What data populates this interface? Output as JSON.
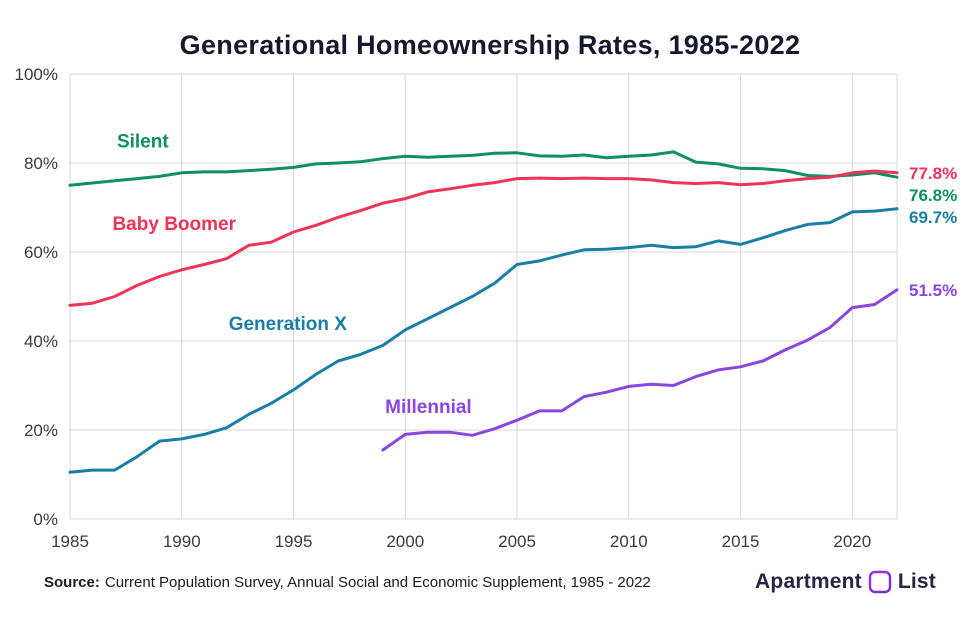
{
  "chart_data": {
    "type": "line",
    "title": "Generational Homeownership Rates, 1985-2022",
    "x_range": [
      1985,
      2022
    ],
    "ylim": [
      0,
      100
    ],
    "x_ticks": [
      1985,
      1990,
      1995,
      2000,
      2005,
      2010,
      2015,
      2020
    ],
    "y_ticks": [
      0,
      20,
      40,
      60,
      80,
      100
    ],
    "grid": true,
    "grid_color": "#d8d8d8",
    "axis_label_color": "#3b3b3b",
    "series": [
      {
        "name": "Silent",
        "color": "#0e9060",
        "start_year": 1985,
        "end_label": "76.8%",
        "values": [
          75,
          75.5,
          76,
          76.5,
          77,
          77.8,
          78,
          78,
          78.3,
          78.6,
          79,
          79.8,
          80,
          80.3,
          81,
          81.5,
          81.3,
          81.5,
          81.7,
          82.2,
          82.3,
          81.6,
          81.5,
          81.8,
          81.2,
          81.5,
          81.8,
          82.5,
          80.2,
          79.8,
          78.8,
          78.7,
          78.3,
          77.2,
          77,
          77.3,
          77.8,
          76.8
        ]
      },
      {
        "name": "Baby Boomer",
        "color": "#f03358",
        "start_year": 1985,
        "end_label": "77.8%",
        "values": [
          48,
          48.5,
          50,
          52.5,
          54.5,
          56,
          57.2,
          58.5,
          61.5,
          62.2,
          64.5,
          66,
          67.8,
          69.3,
          71,
          72,
          73.5,
          74.2,
          75,
          75.6,
          76.5,
          76.6,
          76.5,
          76.6,
          76.5,
          76.5,
          76.2,
          75.6,
          75.4,
          75.6,
          75.1,
          75.4,
          76,
          76.5,
          76.8,
          77.8,
          78.2,
          77.8
        ]
      },
      {
        "name": "Generation X",
        "color": "#1a7fa4",
        "start_year": 1985,
        "end_label": "69.7%",
        "values": [
          10.5,
          11,
          11,
          14,
          17.5,
          18,
          19,
          20.5,
          23.5,
          26,
          29,
          32.5,
          35.5,
          37,
          39,
          42.5,
          45,
          47.5,
          50,
          53,
          57.2,
          58,
          59.3,
          60.5,
          60.6,
          61,
          61.5,
          61,
          61.2,
          62.5,
          61.7,
          63.2,
          64.8,
          66.2,
          66.6,
          69,
          69.2,
          69.7
        ]
      },
      {
        "name": "Millennial",
        "color": "#8a46e0",
        "start_year": 1999,
        "end_label": "51.5%",
        "values": [
          15.5,
          19,
          19.5,
          19.5,
          18.8,
          20.3,
          22.2,
          24.3,
          24.3,
          27.5,
          28.5,
          29.8,
          30.3,
          30,
          32,
          33.5,
          34.2,
          35.5,
          38,
          40.2,
          43,
          47.5,
          48.2,
          51.5
        ]
      }
    ],
    "annotations": [
      {
        "text": "Silent",
        "color": "#0e9060",
        "year": 1987.1,
        "value": 83.5
      },
      {
        "text": "Baby Boomer",
        "color": "#f03358",
        "year": 1986.9,
        "value": 65
      },
      {
        "text": "Generation X",
        "color": "#1a7fa4",
        "year": 1992.1,
        "value": 42.5
      },
      {
        "text": "Millennial",
        "color": "#8a46e0",
        "year": 1999.1,
        "value": 23.8
      }
    ]
  },
  "footer": {
    "source_label": "Source:",
    "source_text": "Current Population Survey, Annual Social and Economic Supplement, 1985 - 2022",
    "brand": {
      "word1": "Apartment",
      "word2": "List"
    }
  }
}
